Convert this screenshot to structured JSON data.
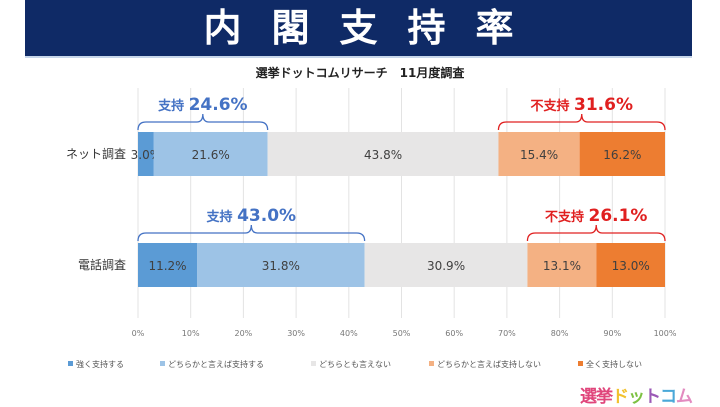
{
  "header": {
    "title": "内閣支持率",
    "subtitle": "選挙ドットコムリサーチ　11月度調査"
  },
  "logo": {
    "chars": [
      "選",
      "挙",
      "ド",
      "ッ",
      "ト",
      "コ",
      "ム"
    ],
    "colors": [
      "#e0457b",
      "#e0457b",
      "#f2c12e",
      "#7dc142",
      "#9b59b6",
      "#4aa8d8",
      "#e38bc0"
    ]
  },
  "chart_data": {
    "type": "bar",
    "orientation": "horizontal",
    "stacked": true,
    "title": "内閣支持率",
    "subtitle": "選挙ドットコムリサーチ　11月度調査",
    "categories": [
      "ネット調査",
      "電話調査"
    ],
    "series": [
      {
        "name": "強く支持する",
        "color": "#5b9bd5",
        "values": [
          3.0,
          11.2
        ]
      },
      {
        "name": "どちらかと言えば支持する",
        "color": "#9dc3e6",
        "values": [
          21.6,
          31.8
        ]
      },
      {
        "name": "どちらとも言えない",
        "color": "#e7e6e6",
        "values": [
          43.8,
          30.9
        ]
      },
      {
        "name": "どちらかと言えば支持しない",
        "color": "#f4b183",
        "values": [
          15.4,
          13.1
        ]
      },
      {
        "name": "全く支持しない",
        "color": "#ed7d31",
        "values": [
          16.2,
          13.0
        ]
      }
    ],
    "data_labels": [
      [
        "3.0%",
        "21.6%",
        "43.8%",
        "15.4%",
        "16.2%"
      ],
      [
        "11.2%",
        "31.8%",
        "30.9%",
        "13.1%",
        "13.0%"
      ]
    ],
    "annotations": [
      {
        "category": "ネット調査",
        "label": "支持",
        "value": "24.6%",
        "color": "#4472c4",
        "span": [
          0,
          24.6
        ]
      },
      {
        "category": "ネット調査",
        "label": "不支持",
        "value": "31.6%",
        "color": "#e02020",
        "span": [
          68.4,
          100
        ]
      },
      {
        "category": "電話調査",
        "label": "支持",
        "value": "43.0%",
        "color": "#4472c4",
        "span": [
          0,
          43.0
        ]
      },
      {
        "category": "電話調査",
        "label": "不支持",
        "value": "26.1%",
        "color": "#e02020",
        "span": [
          73.9,
          100
        ]
      }
    ],
    "xlim": [
      0,
      100
    ],
    "xticks": [
      "0%",
      "10%",
      "20%",
      "30%",
      "40%",
      "50%",
      "60%",
      "70%",
      "80%",
      "90%",
      "100%"
    ],
    "grid": true,
    "legend_position": "bottom"
  }
}
